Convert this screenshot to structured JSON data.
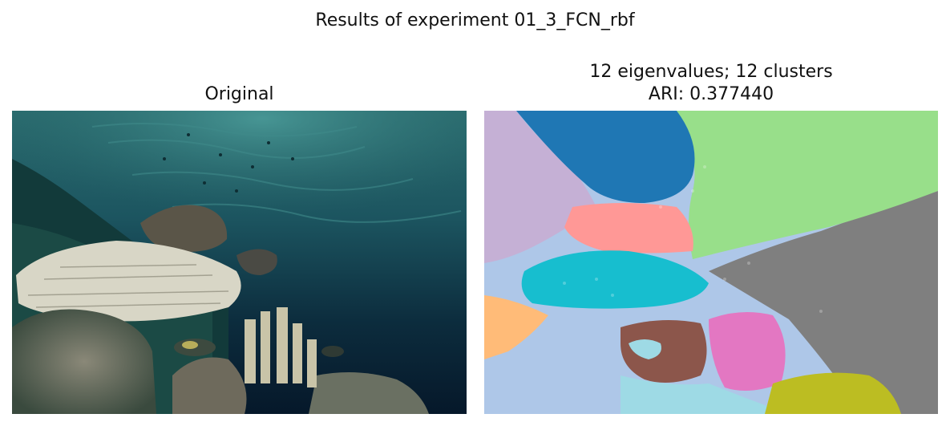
{
  "figure": {
    "title": "Results of experiment 01_3_FCN_rbf"
  },
  "left_panel": {
    "title": "Original",
    "image_description_name": "coral-reef-photo"
  },
  "right_panel": {
    "title_line1": "12 eigenvalues; 12 clusters",
    "title_line2": "ARI: 0.377440",
    "colors": {
      "blue": "#1f77b4",
      "light_green": "#98df8a",
      "lavender": "#c5b0d5",
      "salmon": "#ff9896",
      "cyan": "#17becf",
      "light_blue": "#aec7e8",
      "gray": "#7f7f7f",
      "orange": "#ffbb78",
      "brown": "#8c564b",
      "pink": "#e377c2",
      "olive": "#bcbd22",
      "pale_cyan": "#9edae5"
    }
  }
}
